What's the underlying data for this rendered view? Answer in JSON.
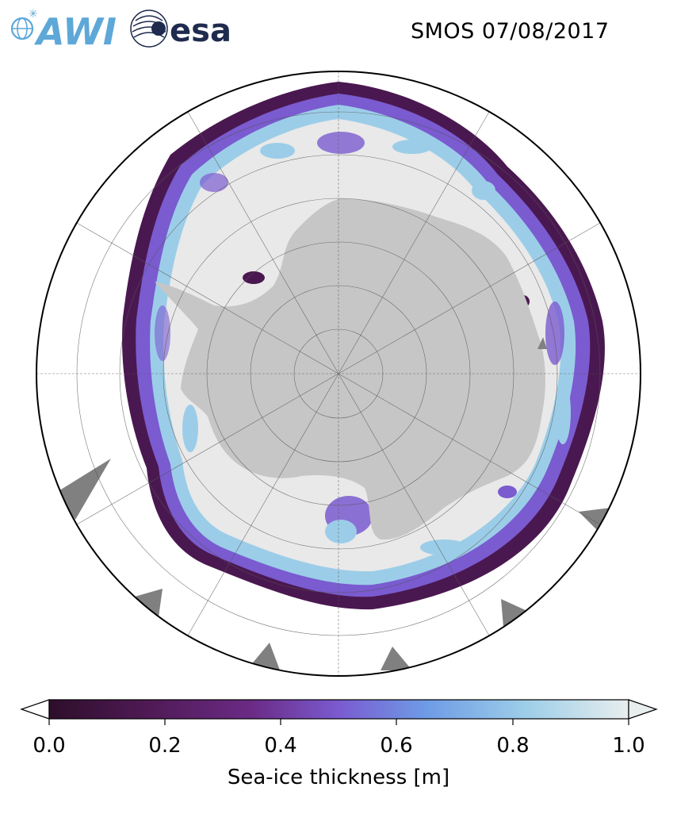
{
  "header": {
    "title": "SMOS 07/08/2017",
    "logos": {
      "awi": "AWI",
      "esa": "esa"
    }
  },
  "map": {
    "projection": "south-polar-stereographic",
    "region": "Antarctica / Southern Ocean",
    "land_color": "#c6c6c6",
    "open_ocean_color": "#ffffff",
    "ice_thick_color": "#e9e9e9",
    "no_data_color": "#808080",
    "graticule": "on"
  },
  "colorbar": {
    "label": "Sea-ice thickness [m]",
    "ticks": [
      "0.0",
      "0.2",
      "0.4",
      "0.6",
      "0.8",
      "1.0"
    ],
    "range": [
      0.0,
      1.0
    ],
    "colormap": [
      "#2d0e2a",
      "#4f1a55",
      "#6b2b86",
      "#7a5bd0",
      "#6e9be6",
      "#9ccde8",
      "#e8eeee"
    ],
    "extend": "both"
  }
}
